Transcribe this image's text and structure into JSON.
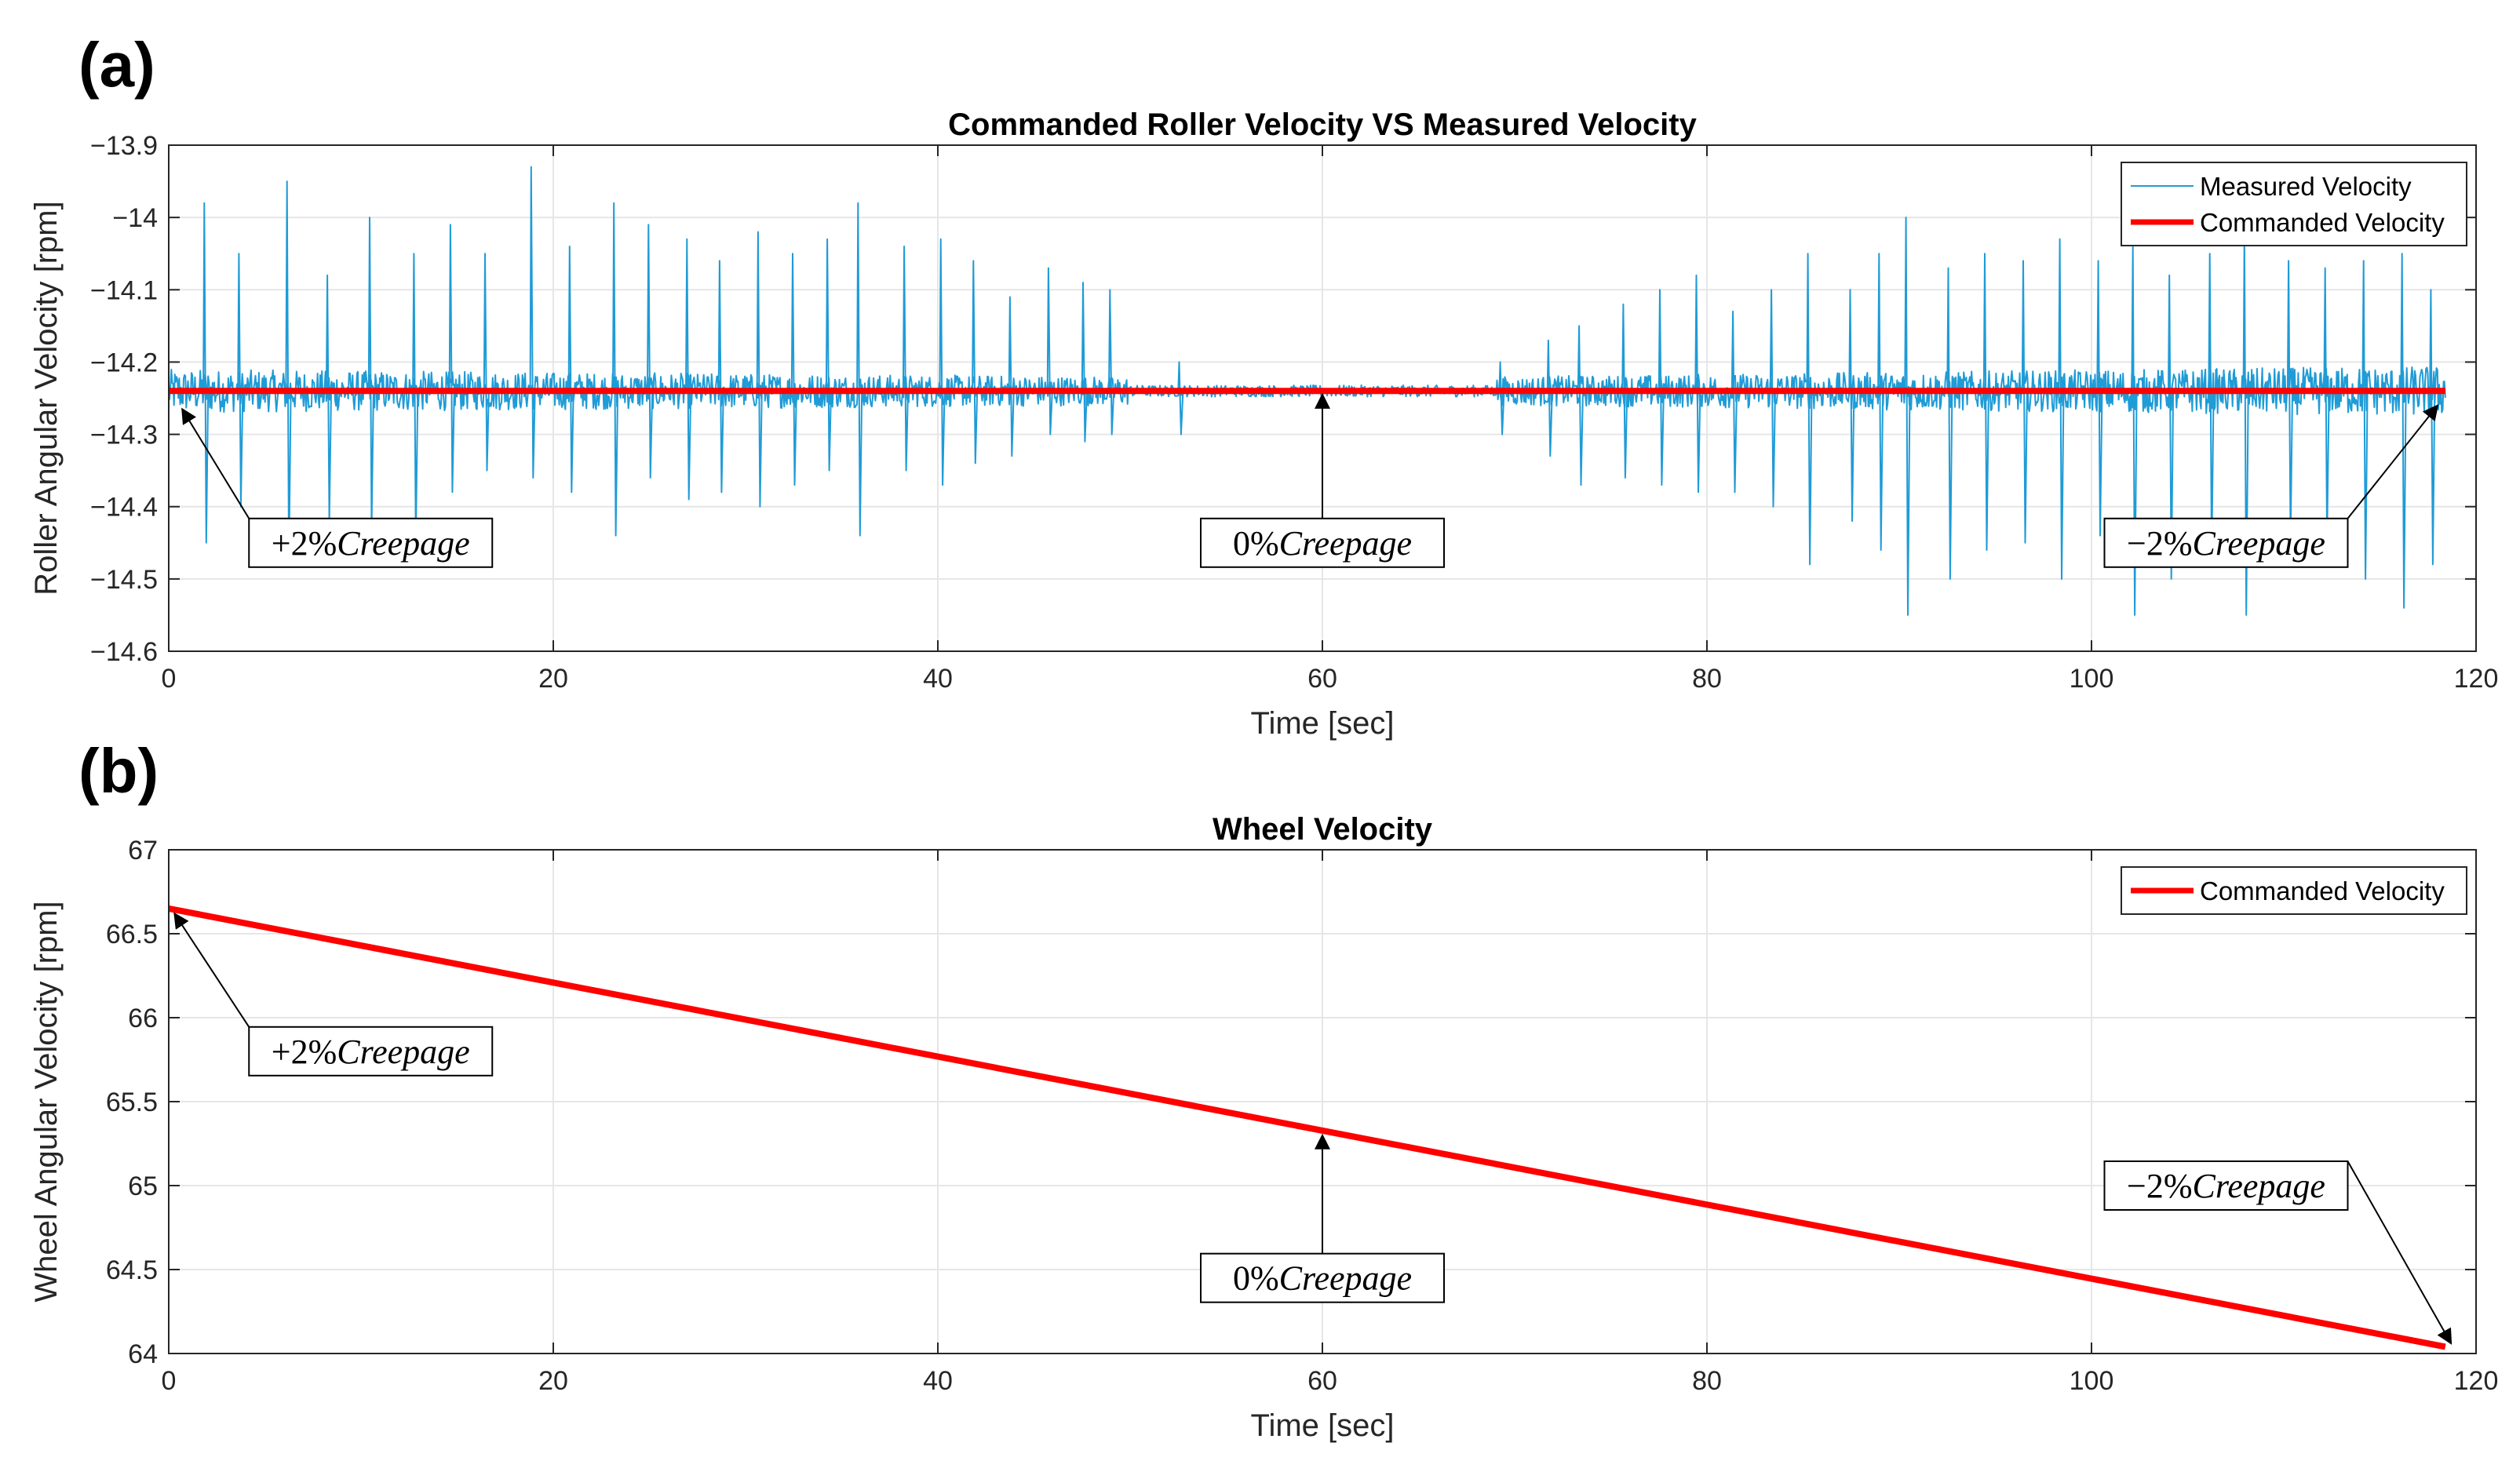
{
  "chart_data": [
    {
      "panel_label": "(a)",
      "type": "line",
      "title": "Commanded Roller Velocity VS Measured Velocity",
      "xlabel": "Time [sec]",
      "ylabel": "Roller Angular Velocity [rpm]",
      "xlim": [
        0,
        120
      ],
      "ylim": [
        -14.6,
        -13.9
      ],
      "xticks": [
        0,
        20,
        40,
        60,
        80,
        100,
        120
      ],
      "xtick_labels": [
        "0",
        "20",
        "40",
        "60",
        "80",
        "100",
        "120"
      ],
      "yticks": [
        -13.9,
        -14,
        -14.1,
        -14.2,
        -14.3,
        -14.4,
        -14.5,
        -14.6
      ],
      "ytick_labels": [
        "−13.9",
        "−14",
        "−14.1",
        "−14.2",
        "−14.3",
        "−14.4",
        "−14.5",
        "−14.6"
      ],
      "grid": true,
      "legend_position": "top-right",
      "series": [
        {
          "name": "Measured Velocity",
          "color": "#1f9bd6",
          "style": "noisy-around-command",
          "x": [
            0,
            10,
            20,
            30,
            40,
            50,
            55,
            60,
            65,
            70,
            80,
            90,
            100,
            110,
            118.4
          ],
          "y": [
            -14.24,
            -14.24,
            -14.24,
            -14.24,
            -14.24,
            -14.24,
            -14.24,
            -14.24,
            -14.24,
            -14.24,
            -14.24,
            -14.24,
            -14.24,
            -14.24,
            -14.24
          ],
          "spikes": [
            {
              "x": 1.8,
              "y": -13.98,
              "low": -14.45
            },
            {
              "x": 3.6,
              "y": -14.05,
              "low": -14.4
            },
            {
              "x": 6.1,
              "y": -13.95,
              "low": -14.48
            },
            {
              "x": 8.2,
              "y": -14.08,
              "low": -14.42
            },
            {
              "x": 10.4,
              "y": -14.0,
              "low": -14.43
            },
            {
              "x": 12.7,
              "y": -14.05,
              "low": -14.45
            },
            {
              "x": 14.6,
              "y": -14.01,
              "low": -14.38
            },
            {
              "x": 16.4,
              "y": -14.05,
              "low": -14.35
            },
            {
              "x": 18.8,
              "y": -13.93,
              "low": -14.36
            },
            {
              "x": 20.8,
              "y": -14.04,
              "low": -14.38
            },
            {
              "x": 23.1,
              "y": -13.98,
              "low": -14.44
            },
            {
              "x": 24.9,
              "y": -14.01,
              "low": -14.36
            },
            {
              "x": 26.9,
              "y": -14.03,
              "low": -14.39
            },
            {
              "x": 28.6,
              "y": -14.06,
              "low": -14.38
            },
            {
              "x": 30.6,
              "y": -14.02,
              "low": -14.4
            },
            {
              "x": 32.4,
              "y": -14.05,
              "low": -14.37
            },
            {
              "x": 34.2,
              "y": -14.03,
              "low": -14.35
            },
            {
              "x": 35.8,
              "y": -13.98,
              "low": -14.44
            },
            {
              "x": 38.2,
              "y": -14.04,
              "low": -14.35
            },
            {
              "x": 40.1,
              "y": -14.03,
              "low": -14.37
            },
            {
              "x": 41.8,
              "y": -14.06,
              "low": -14.34
            },
            {
              "x": 43.7,
              "y": -14.11,
              "low": -14.33
            },
            {
              "x": 45.7,
              "y": -14.07,
              "low": -14.3
            },
            {
              "x": 47.5,
              "y": -14.09,
              "low": -14.31
            },
            {
              "x": 48.9,
              "y": -14.1,
              "low": -14.3
            },
            {
              "x": 52.5,
              "y": -14.2,
              "low": -14.3
            },
            {
              "x": 69.2,
              "y": -14.2,
              "low": -14.3
            },
            {
              "x": 71.7,
              "y": -14.17,
              "low": -14.33
            },
            {
              "x": 73.3,
              "y": -14.15,
              "low": -14.37
            },
            {
              "x": 75.6,
              "y": -14.12,
              "low": -14.36
            },
            {
              "x": 77.5,
              "y": -14.1,
              "low": -14.37
            },
            {
              "x": 79.4,
              "y": -14.08,
              "low": -14.38
            },
            {
              "x": 81.3,
              "y": -14.13,
              "low": -14.38
            },
            {
              "x": 83.3,
              "y": -14.1,
              "low": -14.4
            },
            {
              "x": 85.2,
              "y": -14.05,
              "low": -14.48
            },
            {
              "x": 87.4,
              "y": -14.1,
              "low": -14.42
            },
            {
              "x": 88.9,
              "y": -14.05,
              "low": -14.46
            },
            {
              "x": 90.3,
              "y": -14.0,
              "low": -14.55
            },
            {
              "x": 92.5,
              "y": -14.07,
              "low": -14.5
            },
            {
              "x": 94.4,
              "y": -14.05,
              "low": -14.46
            },
            {
              "x": 96.4,
              "y": -14.06,
              "low": -14.45
            },
            {
              "x": 98.3,
              "y": -14.03,
              "low": -14.5
            },
            {
              "x": 100.3,
              "y": -14.06,
              "low": -14.44
            },
            {
              "x": 102.1,
              "y": -14.04,
              "low": -14.55
            },
            {
              "x": 104.0,
              "y": -14.08,
              "low": -14.5
            },
            {
              "x": 106.1,
              "y": -14.05,
              "low": -14.47
            },
            {
              "x": 107.9,
              "y": -14.02,
              "low": -14.55
            },
            {
              "x": 110.2,
              "y": -14.06,
              "low": -14.45
            },
            {
              "x": 112.1,
              "y": -14.07,
              "low": -14.45
            },
            {
              "x": 114.1,
              "y": -14.06,
              "low": -14.5
            },
            {
              "x": 116.1,
              "y": -14.05,
              "low": -14.54
            },
            {
              "x": 117.6,
              "y": -14.1,
              "low": -14.48
            }
          ]
        },
        {
          "name": "Commanded Velocity",
          "color": "#ff0000",
          "x": [
            0,
            118.4
          ],
          "y": [
            -14.24,
            -14.24
          ]
        }
      ],
      "annotations": [
        {
          "prefix": "+2%",
          "word": "Creepage",
          "target": [
            0.7,
            -14.265
          ],
          "label_at": [
            10.5,
            -14.45
          ]
        },
        {
          "prefix": "0%",
          "word": "Creepage",
          "target": [
            60,
            -14.245
          ],
          "label_at": [
            60,
            -14.45
          ]
        },
        {
          "prefix": "−2%",
          "word": "Creepage",
          "target": [
            118,
            -14.26
          ],
          "label_at": [
            107,
            -14.45
          ]
        }
      ]
    },
    {
      "panel_label": "(b)",
      "type": "line",
      "title": "Wheel Velocity",
      "xlabel": "Time [sec]",
      "ylabel": "Wheel Angular Velocity [rpm]",
      "xlim": [
        0,
        120
      ],
      "ylim": [
        64,
        67
      ],
      "xticks": [
        0,
        20,
        40,
        60,
        80,
        100,
        120
      ],
      "xtick_labels": [
        "0",
        "20",
        "40",
        "60",
        "80",
        "100",
        "120"
      ],
      "yticks": [
        64,
        64.5,
        65,
        65.5,
        66,
        66.5,
        67
      ],
      "ytick_labels": [
        "64",
        "64.5",
        "65",
        "65.5",
        "66",
        "66.5",
        "67"
      ],
      "grid": true,
      "legend_position": "top-right",
      "series": [
        {
          "name": "Commanded Velocity",
          "color": "#ff0000",
          "x": [
            0,
            118.4
          ],
          "y": [
            66.65,
            64.04
          ]
        }
      ],
      "annotations": [
        {
          "prefix": "+2%",
          "word": "Creepage",
          "target": [
            0.3,
            66.62
          ],
          "label_at": [
            10.5,
            65.8
          ]
        },
        {
          "prefix": "0%",
          "word": "Creepage",
          "target": [
            60,
            65.3
          ],
          "label_at": [
            60,
            64.45
          ]
        },
        {
          "prefix": "−2%",
          "word": "Creepage",
          "target": [
            118.7,
            64.06
          ],
          "label_at": [
            107,
            65.0
          ]
        }
      ]
    }
  ]
}
